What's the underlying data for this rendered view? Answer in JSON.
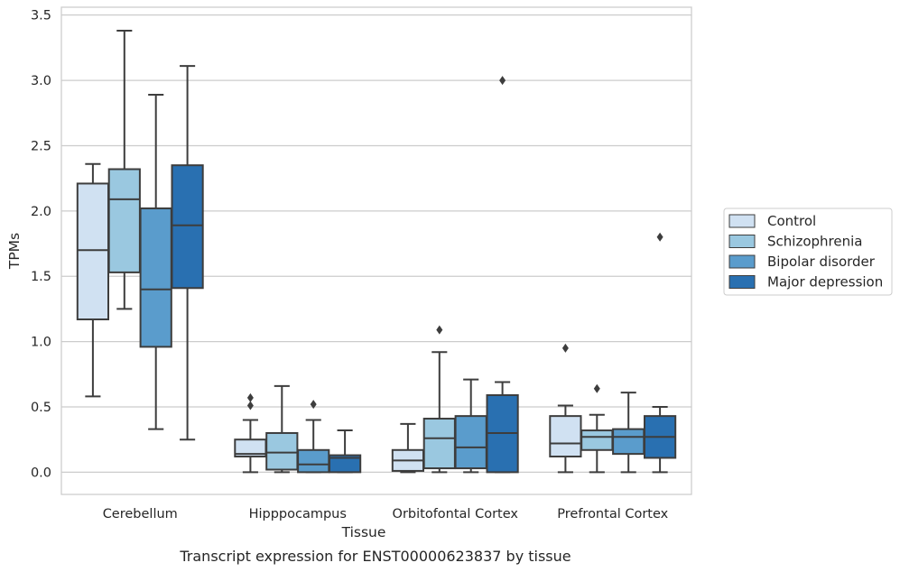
{
  "caption": "Transcript expression for ENST00000623837 by tissue",
  "chart_data": {
    "type": "box",
    "xlabel": "Tissue",
    "ylabel": "TPMs",
    "ylim": [
      -0.17,
      3.56
    ],
    "yticks": [
      "0.0",
      "0.5",
      "1.0",
      "1.5",
      "2.0",
      "2.5",
      "3.0",
      "3.5"
    ],
    "grid": true,
    "legend_position": "right",
    "categories": [
      "Cerebellum",
      "Hipppocampus",
      "Orbitofontal Cortex",
      "Prefrontal Cortex"
    ],
    "series": [
      {
        "name": "Control",
        "color": "#d0e1f2",
        "boxes": [
          {
            "min": 0.58,
            "q1": 1.17,
            "median": 1.7,
            "q3": 2.21,
            "max": 2.36,
            "outliers": []
          },
          {
            "min": 0.0,
            "q1": 0.12,
            "median": 0.14,
            "q3": 0.25,
            "max": 0.4,
            "outliers": [
              0.51,
              0.57
            ]
          },
          {
            "min": 0.0,
            "q1": 0.01,
            "median": 0.09,
            "q3": 0.17,
            "max": 0.37,
            "outliers": []
          },
          {
            "min": 0.0,
            "q1": 0.12,
            "median": 0.22,
            "q3": 0.43,
            "max": 0.51,
            "outliers": [
              0.95
            ]
          }
        ]
      },
      {
        "name": "Schizophrenia",
        "color": "#9ac8e0",
        "boxes": [
          {
            "min": 1.25,
            "q1": 1.53,
            "median": 2.09,
            "q3": 2.32,
            "max": 3.38,
            "outliers": []
          },
          {
            "min": 0.0,
            "q1": 0.02,
            "median": 0.15,
            "q3": 0.3,
            "max": 0.66,
            "outliers": []
          },
          {
            "min": 0.0,
            "q1": 0.03,
            "median": 0.26,
            "q3": 0.41,
            "max": 0.92,
            "outliers": [
              1.09
            ]
          },
          {
            "min": 0.0,
            "q1": 0.17,
            "median": 0.27,
            "q3": 0.32,
            "max": 0.44,
            "outliers": [
              0.64
            ]
          }
        ]
      },
      {
        "name": "Bipolar disorder",
        "color": "#5a9ccc",
        "boxes": [
          {
            "min": 0.33,
            "q1": 0.96,
            "median": 1.4,
            "q3": 2.02,
            "max": 2.89,
            "outliers": []
          },
          {
            "min": 0.0,
            "q1": 0.0,
            "median": 0.06,
            "q3": 0.17,
            "max": 0.4,
            "outliers": [
              0.52
            ]
          },
          {
            "min": 0.0,
            "q1": 0.03,
            "median": 0.19,
            "q3": 0.43,
            "max": 0.71,
            "outliers": []
          },
          {
            "min": 0.0,
            "q1": 0.14,
            "median": 0.27,
            "q3": 0.33,
            "max": 0.61,
            "outliers": []
          }
        ]
      },
      {
        "name": "Major depression",
        "color": "#2970b1",
        "boxes": [
          {
            "min": 0.25,
            "q1": 1.41,
            "median": 1.89,
            "q3": 2.35,
            "max": 3.11,
            "outliers": []
          },
          {
            "min": 0.0,
            "q1": 0.0,
            "median": 0.11,
            "q3": 0.13,
            "max": 0.32,
            "outliers": []
          },
          {
            "min": 0.0,
            "q1": 0.0,
            "median": 0.3,
            "q3": 0.59,
            "max": 0.69,
            "outliers": [
              3.0
            ]
          },
          {
            "min": 0.0,
            "q1": 0.11,
            "median": 0.27,
            "q3": 0.43,
            "max": 0.5,
            "outliers": [
              1.8
            ]
          }
        ]
      }
    ]
  }
}
